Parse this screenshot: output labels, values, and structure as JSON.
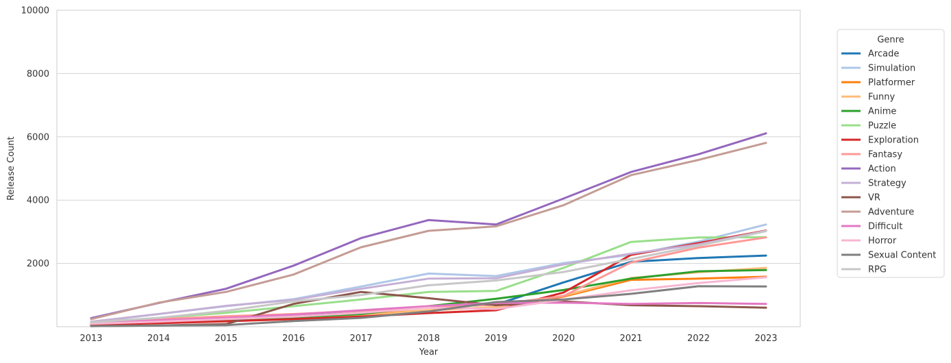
{
  "chart_data": {
    "type": "line",
    "title": "",
    "xlabel": "Year",
    "ylabel": "Release Count",
    "ylim": [
      0,
      10000
    ],
    "yticks": [
      2000,
      4000,
      6000,
      8000,
      10000
    ],
    "grid": "horizontal",
    "legend_position": "right",
    "legend_title": "Genre",
    "x": [
      "2013",
      "2014",
      "2015",
      "2016",
      "2017",
      "2018",
      "2019",
      "2020",
      "2021",
      "2022",
      "2023"
    ],
    "series": [
      {
        "name": "Arcade",
        "color": "#1f77b4",
        "values": [
          120,
          220,
          280,
          380,
          500,
          620,
          700,
          1400,
          2050,
          2170,
          2250
        ]
      },
      {
        "name": "Simulation",
        "color": "#aec7e8",
        "values": [
          150,
          400,
          650,
          870,
          1270,
          1680,
          1600,
          2010,
          2270,
          2690,
          3230
        ]
      },
      {
        "name": "Platformer",
        "color": "#ff7f0e",
        "values": [
          80,
          190,
          250,
          300,
          380,
          520,
          620,
          950,
          1480,
          1520,
          1580
        ]
      },
      {
        "name": "Funny",
        "color": "#ffbb78",
        "values": [
          60,
          120,
          180,
          240,
          350,
          520,
          620,
          980,
          1540,
          1720,
          1860
        ]
      },
      {
        "name": "Anime",
        "color": "#2ca02c",
        "values": [
          70,
          150,
          200,
          300,
          400,
          650,
          880,
          1160,
          1520,
          1750,
          1790
        ]
      },
      {
        "name": "Puzzle",
        "color": "#98df8a",
        "values": [
          130,
          280,
          440,
          650,
          860,
          1100,
          1130,
          1860,
          2680,
          2820,
          2830
        ]
      },
      {
        "name": "Exploration",
        "color": "#d62728",
        "values": [
          60,
          110,
          170,
          240,
          320,
          430,
          520,
          1080,
          2270,
          2640,
          3040
        ]
      },
      {
        "name": "Fantasy",
        "color": "#ff9896",
        "values": [
          110,
          240,
          330,
          400,
          500,
          620,
          700,
          970,
          2030,
          2500,
          2820
        ]
      },
      {
        "name": "Action",
        "color": "#9467bd",
        "values": [
          270,
          750,
          1200,
          1930,
          2800,
          3370,
          3230,
          4050,
          4890,
          5450,
          6110
        ]
      },
      {
        "name": "Strategy",
        "color": "#c5b0d5",
        "values": [
          160,
          400,
          660,
          850,
          1200,
          1520,
          1530,
          1970,
          2310,
          2600,
          3030
        ]
      },
      {
        "name": "VR",
        "color": "#8c564b",
        "values": [
          20,
          40,
          80,
          720,
          1100,
          900,
          680,
          800,
          680,
          650,
          600
        ]
      },
      {
        "name": "Adventure",
        "color": "#c49c94",
        "values": [
          240,
          760,
          1100,
          1650,
          2510,
          3030,
          3170,
          3840,
          4790,
          5270,
          5810
        ]
      },
      {
        "name": "Difficult",
        "color": "#e377c2",
        "values": [
          100,
          200,
          280,
          380,
          520,
          650,
          750,
          760,
          720,
          750,
          720
        ]
      },
      {
        "name": "Horror",
        "color": "#f7b6d2",
        "values": [
          90,
          160,
          240,
          320,
          440,
          600,
          560,
          850,
          1150,
          1380,
          1560
        ]
      },
      {
        "name": "Sexual Content",
        "color": "#7f7f7f",
        "values": [
          20,
          40,
          50,
          180,
          280,
          480,
          780,
          860,
          1040,
          1280,
          1270
        ]
      },
      {
        "name": "RPG",
        "color": "#c7c7c7",
        "values": [
          140,
          280,
          500,
          800,
          1000,
          1310,
          1460,
          1730,
          2140,
          2560,
          3020
        ]
      }
    ]
  }
}
